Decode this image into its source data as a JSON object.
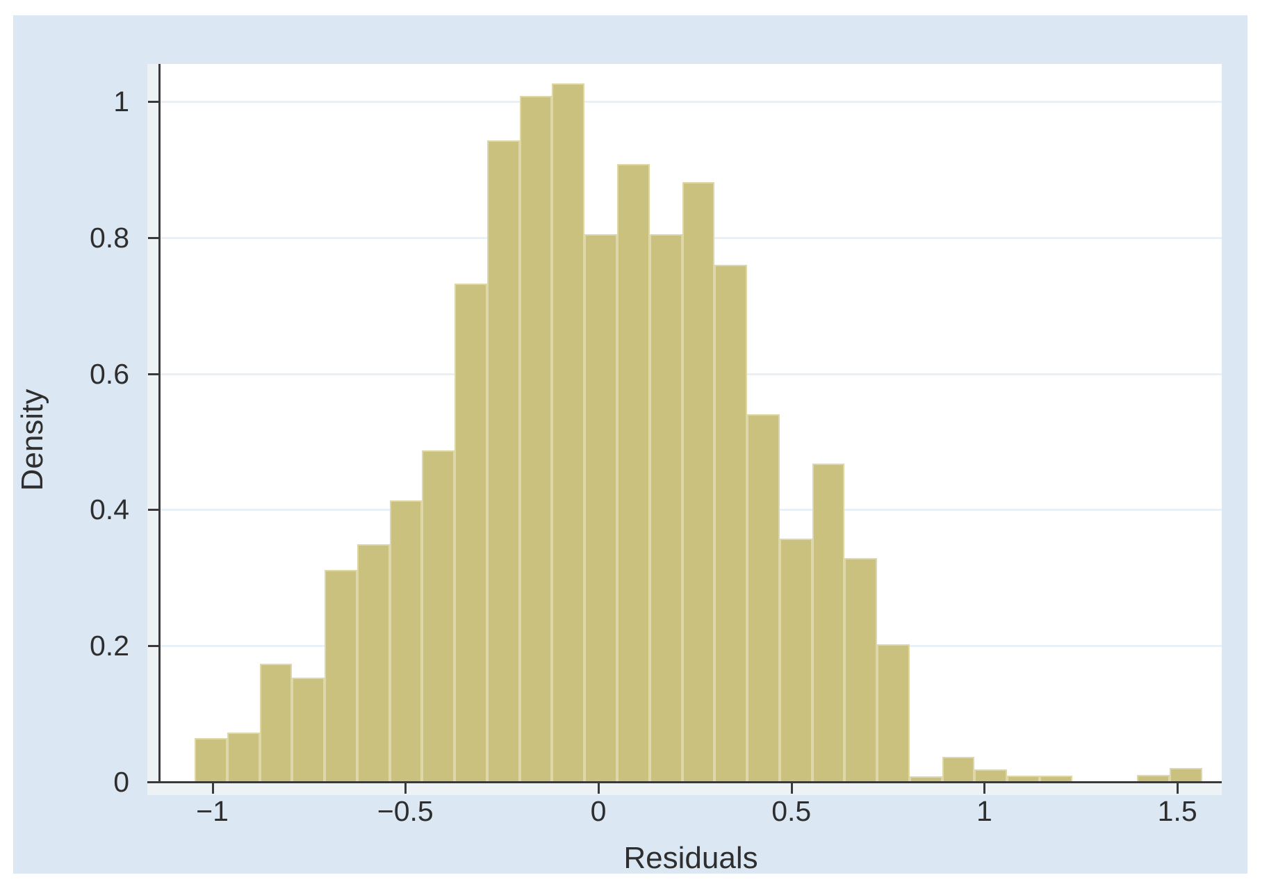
{
  "window": {
    "title": ""
  },
  "colors": {
    "page_bg": "#ffffff",
    "canvas_bg": "#dce7f4",
    "plot_bg": "#ffffff",
    "bar_fill": "#cac17e",
    "bar_border": "#ddd7a9",
    "axis_line": "#3a3a3a",
    "grid_line": "#e8f0f8",
    "tick_strip": "#edf2f5",
    "text": "#2e2e2e"
  },
  "chart_data": {
    "type": "bar",
    "subtype": "histogram",
    "title": "",
    "xlabel": "Residuals",
    "ylabel": "Density",
    "xlim": [
      -1.136,
      1.615
    ],
    "ylim": [
      0,
      1.055
    ],
    "grid": "horizontal-only",
    "legend": "none",
    "x_ticks": [
      -1,
      -0.5,
      0,
      0.5,
      1,
      1.5
    ],
    "x_tick_labels": [
      "−1",
      "−0.5",
      "0",
      "0.5",
      "1",
      "1.5"
    ],
    "y_ticks": [
      0,
      0.2,
      0.4,
      0.6,
      0.8,
      1
    ],
    "y_tick_labels": [
      "0",
      "0.2",
      "0.4",
      "0.6",
      "0.8",
      "1"
    ],
    "bins": {
      "start": -1.046,
      "width": 0.0842,
      "count": 31
    },
    "densities": [
      0.064,
      0.073,
      0.174,
      0.153,
      0.311,
      0.349,
      0.414,
      0.487,
      0.732,
      0.943,
      1.008,
      1.026,
      0.805,
      0.908,
      0.805,
      0.881,
      0.76,
      0.54,
      0.357,
      0.468,
      0.329,
      0.202,
      0.008,
      0.037,
      0.018,
      0.009,
      0.009,
      0,
      0,
      0.01,
      0.02
    ]
  }
}
